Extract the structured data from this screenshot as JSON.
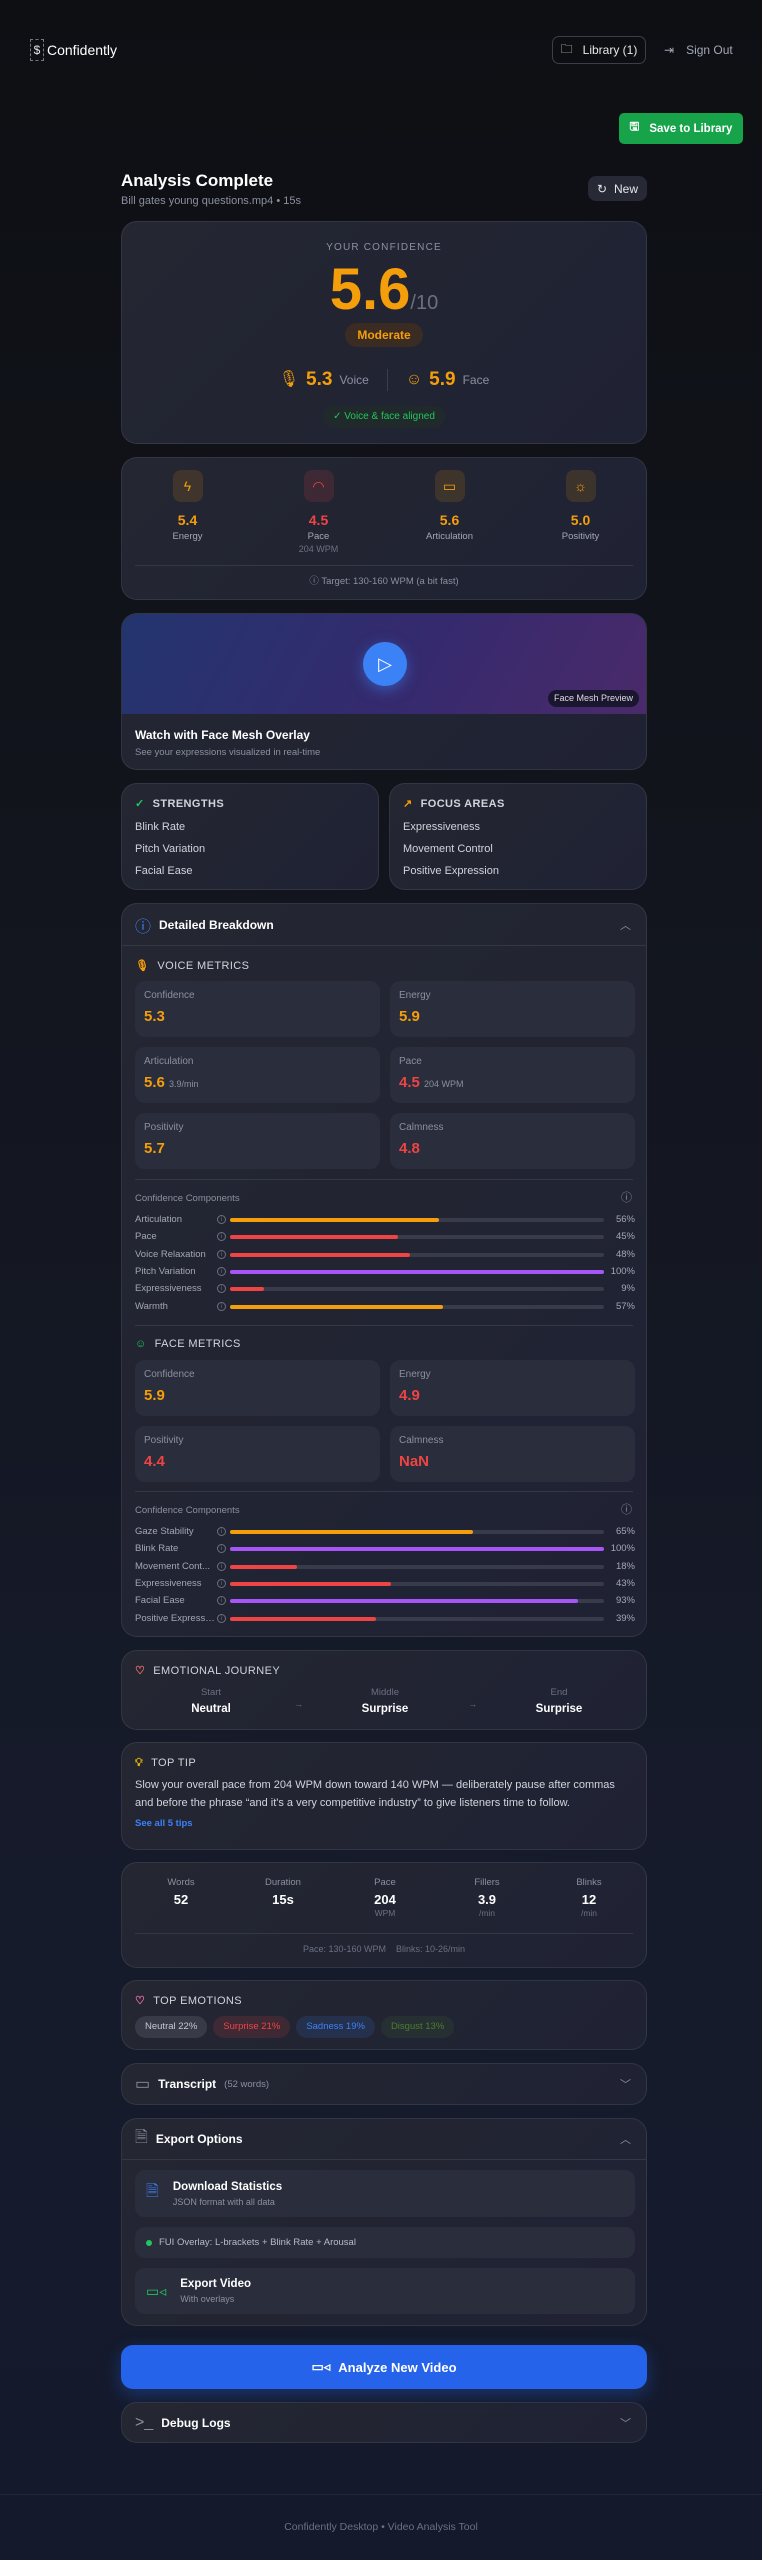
{
  "header": {
    "brand": "Confidently",
    "library_label": "Library (1)",
    "signout_label": "Sign Out"
  },
  "save_label": "Save to Library",
  "title": "Analysis Complete",
  "subtitle": "Bill gates young questions.mp4 • 15s",
  "new_label": "New",
  "confidence": {
    "label": "YOUR CONFIDENCE",
    "score": "5.6",
    "max": "/10",
    "level": "Moderate",
    "voice_score": "5.3",
    "voice_label": "Voice",
    "face_score": "5.9",
    "face_label": "Face",
    "aligned": "Voice & face aligned"
  },
  "metrics": [
    {
      "value": "5.4",
      "label": "Energy",
      "icon": "lightning-icon",
      "color": "#f59e0b"
    },
    {
      "value": "4.5",
      "label": "Pace",
      "sub": "204 WPM",
      "icon": "gauge-icon",
      "color": "#ef4444"
    },
    {
      "value": "5.6",
      "label": "Articulation",
      "icon": "message-icon",
      "color": "#f59e0b"
    },
    {
      "value": "5.0",
      "label": "Positivity",
      "icon": "sun-icon",
      "color": "#f59e0b"
    }
  ],
  "target": "Target: 130-160 WPM (a bit fast)",
  "video": {
    "badge": "Face Mesh Preview",
    "title": "Watch with Face Mesh Overlay",
    "subtitle": "See your expressions visualized in real-time"
  },
  "strengths": {
    "title": "STRENGTHS",
    "items": [
      "Blink Rate",
      "Pitch Variation",
      "Facial Ease"
    ]
  },
  "focus": {
    "title": "FOCUS AREAS",
    "items": [
      "Expressiveness",
      "Movement Control",
      "Positive Expression"
    ]
  },
  "breakdown": {
    "title": "Detailed Breakdown",
    "voice": {
      "title": "VOICE METRICS",
      "tiles": [
        {
          "label": "Confidence",
          "value": "5.3"
        },
        {
          "label": "Energy",
          "value": "5.9"
        },
        {
          "label": "Articulation",
          "value": "5.6",
          "sub": "3.9/min"
        },
        {
          "label": "Pace",
          "value": "4.5",
          "sub": "204 WPM"
        },
        {
          "label": "Positivity",
          "value": "5.7"
        },
        {
          "label": "Calmness",
          "value": "4.8"
        }
      ],
      "components_title": "Confidence Components",
      "components": [
        {
          "name": "Articulation",
          "pct": 56,
          "label": "56%",
          "color": "#f59e0b"
        },
        {
          "name": "Pace",
          "pct": 45,
          "label": "45%",
          "color": "#ef4444"
        },
        {
          "name": "Voice Relaxation",
          "pct": 48,
          "label": "48%",
          "color": "#ef4444"
        },
        {
          "name": "Pitch Variation",
          "pct": 100,
          "label": "100%",
          "color": "#a855f7"
        },
        {
          "name": "Expressiveness",
          "pct": 9,
          "label": "9%",
          "color": "#ef4444"
        },
        {
          "name": "Warmth",
          "pct": 57,
          "label": "57%",
          "color": "#f59e0b"
        }
      ]
    },
    "face": {
      "title": "FACE METRICS",
      "tiles": [
        {
          "label": "Confidence",
          "value": "5.9"
        },
        {
          "label": "Energy",
          "value": "4.9"
        },
        {
          "label": "Positivity",
          "value": "4.4"
        },
        {
          "label": "Calmness",
          "value": "NaN"
        }
      ],
      "components_title": "Confidence Components",
      "components": [
        {
          "name": "Gaze Stability",
          "pct": 65,
          "label": "65%",
          "color": "#f59e0b"
        },
        {
          "name": "Blink Rate",
          "pct": 100,
          "label": "100%",
          "color": "#a855f7"
        },
        {
          "name": "Movement Cont...",
          "pct": 18,
          "label": "18%",
          "color": "#ef4444"
        },
        {
          "name": "Expressiveness",
          "pct": 43,
          "label": "43%",
          "color": "#ef4444"
        },
        {
          "name": "Facial Ease",
          "pct": 93,
          "label": "93%",
          "color": "#a855f7"
        },
        {
          "name": "Positive Expressi...",
          "pct": 39,
          "label": "39%",
          "color": "#ef4444"
        }
      ]
    }
  },
  "journey": {
    "title": "EMOTIONAL JOURNEY",
    "steps": [
      {
        "label": "Start",
        "value": "Neutral"
      },
      {
        "label": "Middle",
        "value": "Surprise"
      },
      {
        "label": "End",
        "value": "Surprise"
      }
    ],
    "arrow": "→"
  },
  "tip": {
    "title": "TOP TIP",
    "text": "Slow your overall pace from 204 WPM down toward 140 WPM — deliberately pause after commas and before the phrase “and it's a very competitive industry” to give listeners time to follow.",
    "link": "See all 5 tips"
  },
  "stats": {
    "items": [
      {
        "label": "Words",
        "value": "52"
      },
      {
        "label": "Duration",
        "value": "15s"
      },
      {
        "label": "Pace",
        "value": "204",
        "unit": "WPM"
      },
      {
        "label": "Fillers",
        "value": "3.9",
        "unit": "/min"
      },
      {
        "label": "Blinks",
        "value": "12",
        "unit": "/min"
      }
    ],
    "footer_pace": "Pace: 130-160 WPM",
    "footer_blinks": "Blinks: 10-26/min"
  },
  "emotions": {
    "title": "TOP EMOTIONS",
    "items": [
      {
        "label": "Neutral 22%",
        "color": "#c4c7d0"
      },
      {
        "label": "Surprise 21%",
        "color": "#ef4444"
      },
      {
        "label": "Sadness 19%",
        "color": "#3b82f6"
      },
      {
        "label": "Disgust 13%",
        "color": "#4d7c2f"
      }
    ]
  },
  "transcript": {
    "title": "Transcript",
    "count": "(52 words)"
  },
  "export": {
    "title": "Export Options",
    "download_title": "Download Statistics",
    "download_sub": "JSON format with all data",
    "overlay": "FUI Overlay: L-brackets + Blink Rate + Arousal",
    "video_title": "Export Video",
    "video_sub": "With overlays"
  },
  "analyze_label": "Analyze New Video",
  "debug_label": "Debug Logs",
  "footer": "Confidently Desktop • Video Analysis Tool"
}
